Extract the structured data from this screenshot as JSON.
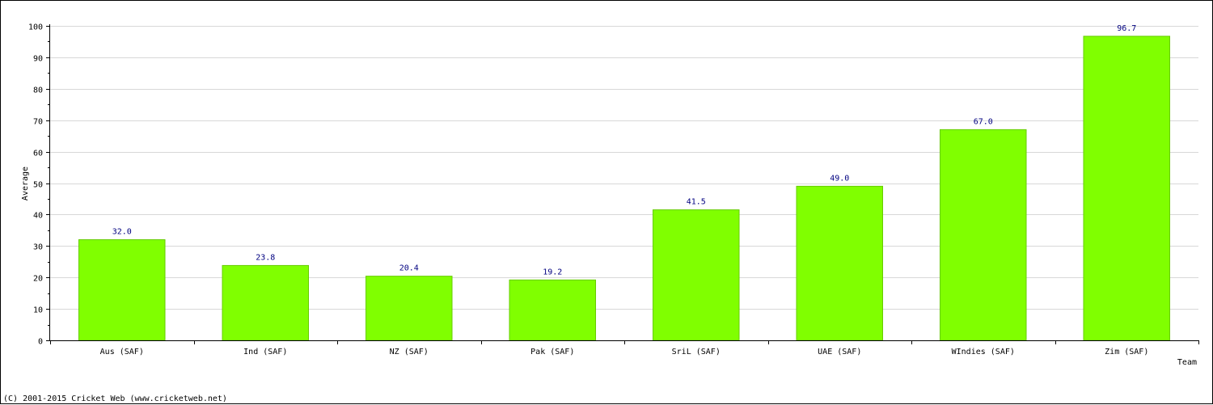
{
  "chart_data": {
    "type": "bar",
    "categories": [
      "Aus (SAF)",
      "Ind (SAF)",
      "NZ (SAF)",
      "Pak (SAF)",
      "SriL (SAF)",
      "UAE (SAF)",
      "WIndies (SAF)",
      "Zim (SAF)"
    ],
    "values": [
      32.0,
      23.8,
      20.4,
      19.2,
      41.5,
      49.0,
      67.0,
      96.7
    ],
    "value_labels": [
      "32.0",
      "23.8",
      "20.4",
      "19.2",
      "41.5",
      "49.0",
      "67.0",
      "96.7"
    ],
    "xlabel": "Team",
    "ylabel": "Average",
    "ylim": [
      0,
      100
    ],
    "yticks": [
      "0",
      "10",
      "20",
      "30",
      "40",
      "50",
      "60",
      "70",
      "80",
      "90",
      "100"
    ],
    "grid": true,
    "bar_color": "#80ff00",
    "bar_edge_color": "#66cc00",
    "value_label_color": "#000080"
  },
  "footer": "(C) 2001-2015 Cricket Web (www.cricketweb.net)"
}
